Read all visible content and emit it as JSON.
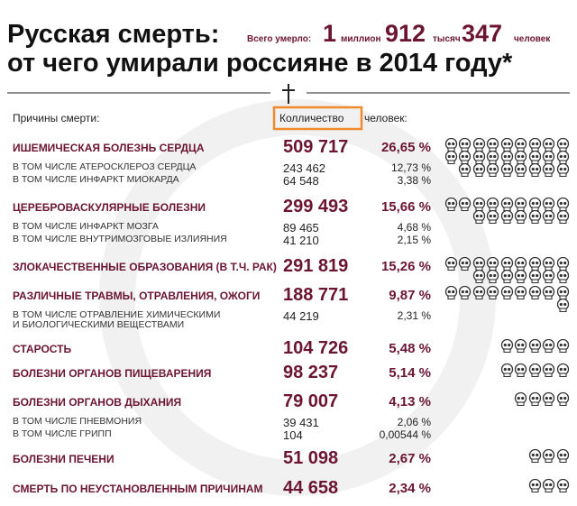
{
  "header": {
    "title_line1": "Русская смерть:",
    "total_label": "Всего умерло:",
    "total_millions": "1",
    "millions_word": "миллион",
    "total_thousands": "912",
    "thousands_word": "тысяч",
    "total_units": "347",
    "units_word": "человек",
    "title_line2": "от чего умирали россияне в 2014 году*"
  },
  "columns": {
    "cause": "Причины смерти:",
    "count_highlighted": "Колличество",
    "count_rest": "человек:"
  },
  "rows": [
    {
      "cause": "ИШЕМИЧЕСКАЯ БОЛЕЗНЬ СЕРДЦА",
      "count": "509 717",
      "percent": "26,65 %",
      "subs": [
        {
          "cause": "В ТОМ ЧИСЛЕ АТЕРОСКЛЕРОЗ СЕРДЦА",
          "count": "243 462",
          "percent": "12,73 %"
        },
        {
          "cause": "В ТОМ ЧИСЛЕ ИНФАРКТ МИОКАРДА",
          "count": "64 548",
          "percent": "3,38 %"
        }
      ]
    },
    {
      "cause": "ЦЕРЕБРОВАСКУЛЯРНЫЕ БОЛЕЗНИ",
      "count": "299 493",
      "percent": "15,66 %",
      "subs": [
        {
          "cause": "В ТОМ ЧИСЛЕ ИНФАРКТ МОЗГА",
          "count": "89 465",
          "percent": "4,68 %"
        },
        {
          "cause": "В ТОМ ЧИСЛЕ ВНУТРИМОЗГОВЫЕ ИЗЛИЯНИЯ",
          "count": "41 210",
          "percent": "2,15 %"
        }
      ]
    },
    {
      "cause": "ЗЛОКАЧЕСТВЕННЫЕ ОБРАЗОВАНИЯ (В Т.Ч. РАК)",
      "count": "291 819",
      "percent": "15,26 %",
      "subs": []
    },
    {
      "cause": "РАЗЛИЧНЫЕ ТРАВМЫ, ОТРАВЛЕНИЯ, ОЖОГИ",
      "count": "188 771",
      "percent": "9,87 %",
      "subs": [
        {
          "cause": "В ТОМ ЧИСЛЕ ОТРАВЛЕНИЕ ХИМИЧЕСКИМИ И БИОЛОГИЧЕСКИМИ ВЕЩЕСТВАМИ",
          "count": "44 219",
          "percent": "2,31 %"
        }
      ]
    },
    {
      "cause": "СТАРОСТЬ",
      "count": "104 726",
      "percent": "5,48 %",
      "subs": []
    },
    {
      "cause": "БОЛЕЗНИ ОРГАНОВ ПИЩЕВАРЕНИЯ",
      "count": "98 237",
      "percent": "5,14 %",
      "subs": []
    },
    {
      "cause": "БОЛЕЗНИ ОРГАНОВ ДЫХАНИЯ",
      "count": "79 007",
      "percent": "4,13 %",
      "subs": [
        {
          "cause": "В ТОМ ЧИСЛЕ ПНЕВМОНИЯ",
          "count": "39 431",
          "percent": "2,06 %"
        },
        {
          "cause": "В ТОМ ЧИСЛЕ ГРИПП",
          "count": "104",
          "percent": "0,00544 %"
        }
      ]
    },
    {
      "cause": "БОЛЕЗНИ ПЕЧЕНИ",
      "count": "51 098",
      "percent": "2,67 %",
      "subs": []
    },
    {
      "cause": "СМЕРТЬ ПО НЕУСТАНОВЛЕННЫМ ПРИЧИНАМ",
      "count": "44 658",
      "percent": "2,34 %",
      "subs": []
    }
  ]
}
